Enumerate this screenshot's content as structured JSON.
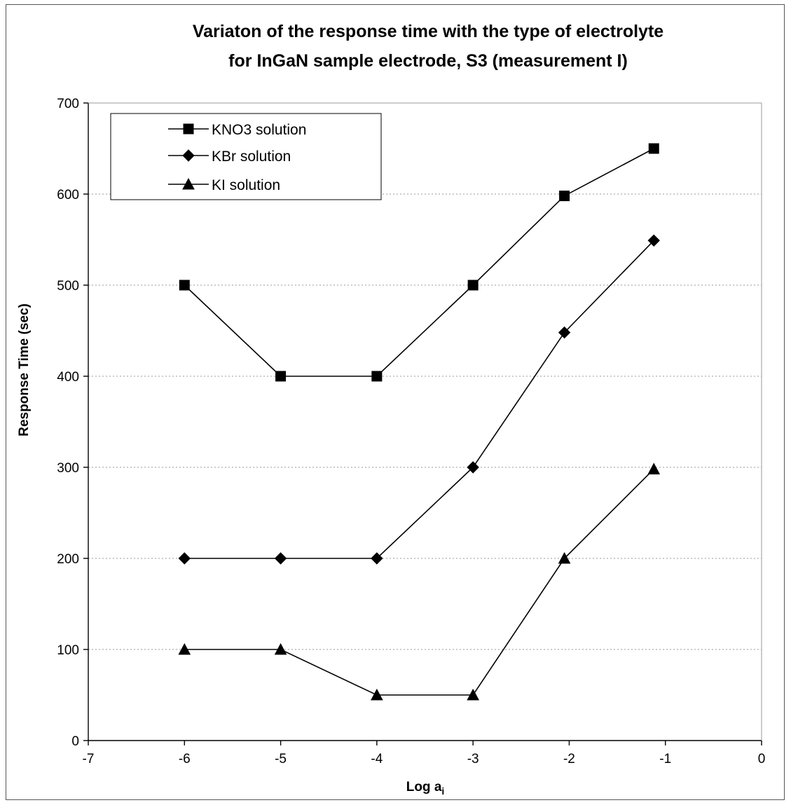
{
  "chart_data": {
    "type": "line",
    "title_lines": [
      "Variaton of the response time with the type of electrolyte",
      "for InGaN sample electrode, S3 (measurement I)"
    ],
    "xlabel": "Log a",
    "xlabel_subscript": "i",
    "ylabel": "Response Time (sec)",
    "xlim": [
      -7,
      0
    ],
    "ylim": [
      0,
      700
    ],
    "xticks": [
      -7,
      -6,
      -5,
      -4,
      -3,
      -2,
      -1,
      0
    ],
    "yticks": [
      0,
      100,
      200,
      300,
      400,
      500,
      600,
      700
    ],
    "grid": "horizontal-dotted",
    "legend_position": "top-left",
    "series": [
      {
        "name": "KNO3 solution",
        "marker": "square",
        "x": [
          -6,
          -5,
          -4,
          -3,
          -2.05,
          -1.12
        ],
        "y": [
          500,
          400,
          400,
          500,
          598,
          650
        ]
      },
      {
        "name": "KBr solution",
        "marker": "diamond",
        "x": [
          -6,
          -5,
          -4,
          -3,
          -2.05,
          -1.12
        ],
        "y": [
          200,
          200,
          200,
          300,
          448,
          549
        ]
      },
      {
        "name": "KI solution",
        "marker": "triangle",
        "x": [
          -6,
          -5,
          -4,
          -3,
          -2.05,
          -1.12
        ],
        "y": [
          100,
          100,
          50,
          50,
          200,
          298
        ]
      }
    ]
  }
}
